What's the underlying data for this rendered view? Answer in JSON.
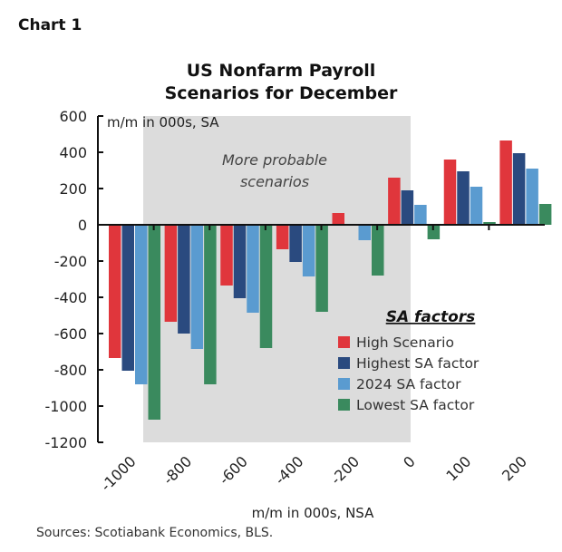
{
  "chart_label": "Chart 1",
  "chart_data": {
    "type": "bar",
    "title": "US Nonfarm Payroll",
    "subtitle": "Scenarios for December",
    "ylabel": "m/m in 000s, SA",
    "xlabel": "m/m in 000s, NSA",
    "ylim": [
      -1200,
      600
    ],
    "yticks": [
      600,
      400,
      200,
      0,
      -200,
      -400,
      -600,
      -800,
      -1000,
      -1200
    ],
    "categories": [
      "-1000",
      "-800",
      "-600",
      "-400",
      "-200",
      "0",
      "100",
      "200"
    ],
    "shaded_region": {
      "label": "More probable scenarios",
      "label_lines": [
        "More probable",
        "scenarios"
      ]
    },
    "legend": {
      "title": "SA factors",
      "placement": "right"
    },
    "series": [
      {
        "name": "High Scenario",
        "color": "#e0363c",
        "values": [
          -735,
          -535,
          -335,
          -135,
          65,
          260,
          360,
          465
        ]
      },
      {
        "name": "Highest SA factor",
        "color": "#2a4a7f",
        "values": [
          -805,
          -600,
          -405,
          -205,
          0,
          190,
          295,
          395
        ]
      },
      {
        "name": "2024 SA factor",
        "color": "#5a9bd0",
        "values": [
          -880,
          -685,
          -485,
          -285,
          -85,
          110,
          210,
          310
        ]
      },
      {
        "name": "Lowest SA factor",
        "color": "#3a8a5e",
        "values": [
          -1075,
          -880,
          -680,
          -480,
          -280,
          -80,
          15,
          115
        ]
      }
    ]
  },
  "source": "Sources: Scotiabank Economics, BLS."
}
